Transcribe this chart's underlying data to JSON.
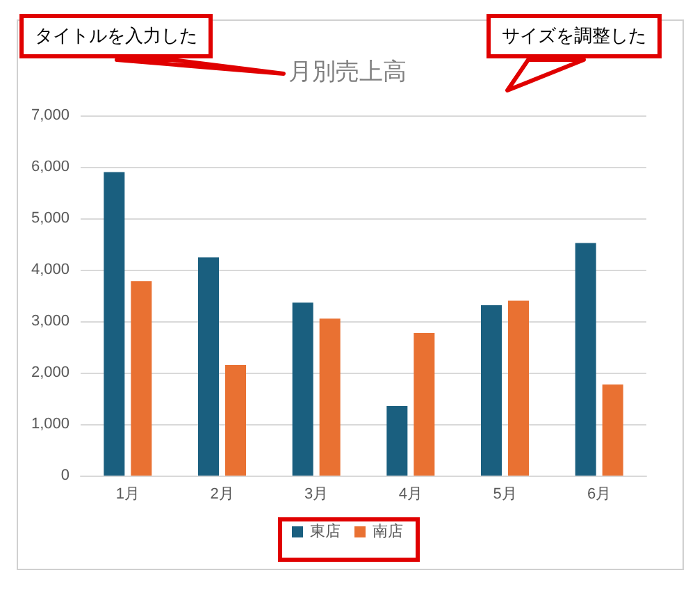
{
  "chart_data": {
    "type": "bar",
    "title": "月別売上高",
    "categories": [
      "1月",
      "2月",
      "3月",
      "4月",
      "5月",
      "6月"
    ],
    "series": [
      {
        "name": "東店",
        "color": "#1a5f7f",
        "values": [
          5900,
          4240,
          3360,
          1350,
          3310,
          4520
        ]
      },
      {
        "name": "南店",
        "color": "#e97132",
        "values": [
          3780,
          2150,
          3050,
          2770,
          3400,
          1770
        ]
      }
    ],
    "ylim": [
      0,
      7000
    ],
    "yticks": [
      {
        "value": 0,
        "label": "0"
      },
      {
        "value": 1000,
        "label": "1,000"
      },
      {
        "value": 2000,
        "label": "2,000"
      },
      {
        "value": 3000,
        "label": "3,000"
      },
      {
        "value": 4000,
        "label": "4,000"
      },
      {
        "value": 5000,
        "label": "5,000"
      },
      {
        "value": 6000,
        "label": "6,000"
      },
      {
        "value": 7000,
        "label": "7,000"
      }
    ],
    "grid": "y",
    "legend": "bottom",
    "annotations": [
      "タイトルを入力した",
      "サイズを調整した"
    ]
  }
}
